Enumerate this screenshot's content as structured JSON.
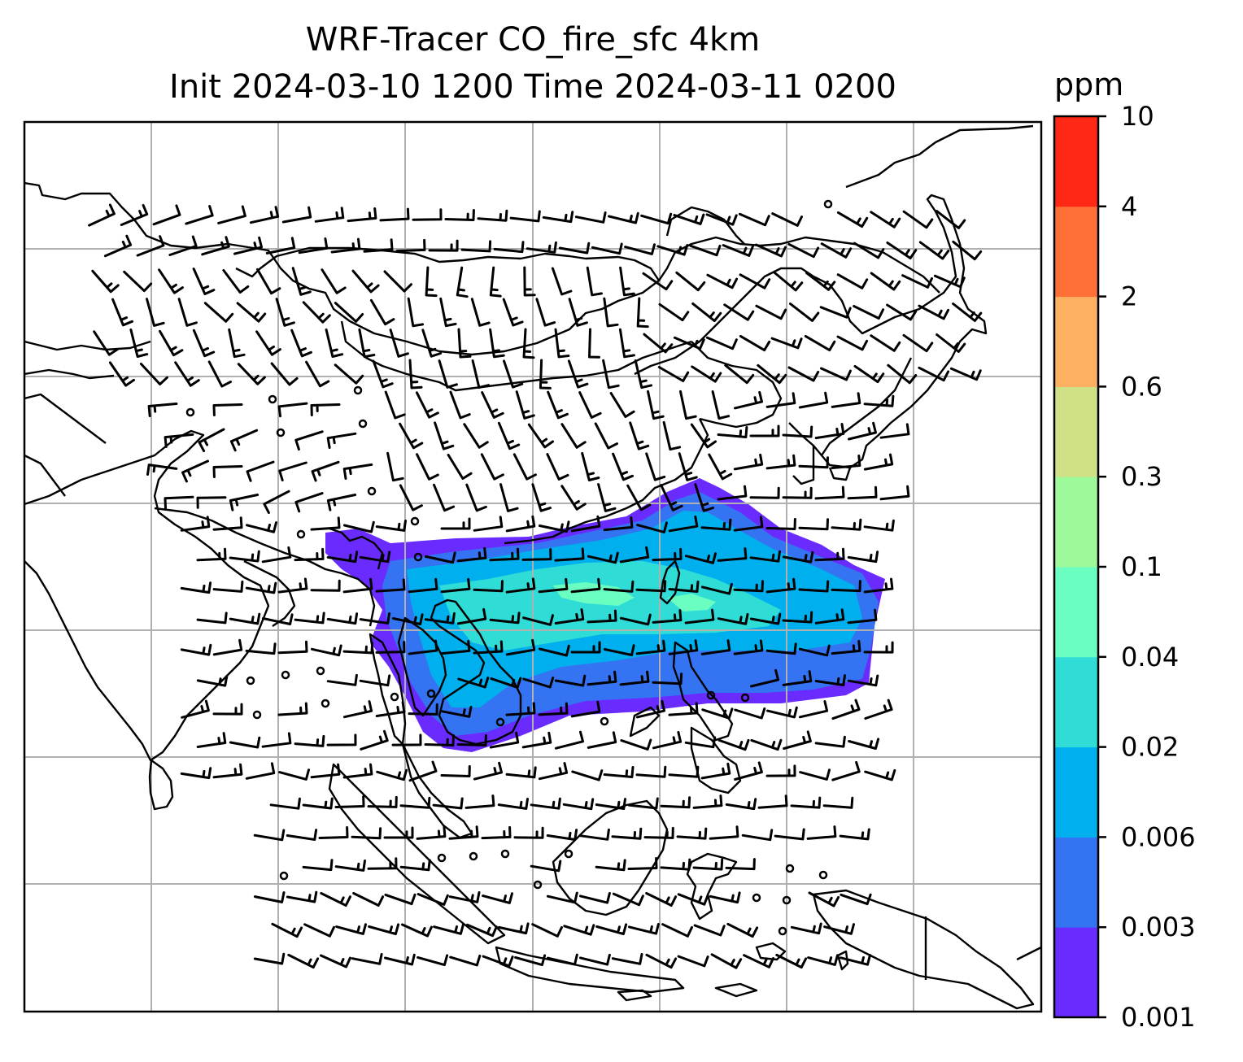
{
  "map": {
    "title_line1": "WRF-Tracer CO_fire_sfc 4km",
    "title_line2": "Init 2024-03-10 1200 Time 2024-03-11 0200",
    "variable": "CO_fire_sfc",
    "grid": true,
    "coastline_color": "#000000",
    "gridline_color": "#b0b0b0",
    "overlay": "wind barbs and calm circles"
  },
  "colorbar": {
    "title": "ppm",
    "orientation": "vertical",
    "placement": "right",
    "levels": [
      "0.001",
      "0.003",
      "0.006",
      "0.02",
      "0.04",
      "0.1",
      "0.3",
      "0.6",
      "2",
      "4",
      "10"
    ],
    "colors": [
      "#6a2bff",
      "#3473f2",
      "#00b0ee",
      "#2fdcd6",
      "#6affc0",
      "#9cfa9b",
      "#cfe186",
      "#fdb062",
      "#ff7038",
      "#ff2814"
    ]
  }
}
